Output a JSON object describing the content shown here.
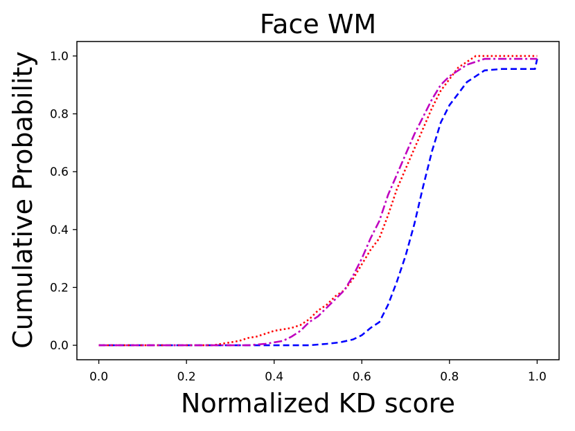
{
  "chart_data": {
    "type": "line",
    "title": "Face WM",
    "xlabel": "Normalized KD score",
    "ylabel": "Cumulative Probability",
    "xlim": [
      -0.05,
      1.05
    ],
    "ylim": [
      -0.05,
      1.05
    ],
    "x_ticks": [
      "0.0",
      "0.2",
      "0.4",
      "0.6",
      "0.8",
      "1.0"
    ],
    "y_ticks": [
      "0.0",
      "0.2",
      "0.4",
      "0.6",
      "0.8",
      "1.0"
    ],
    "grid": false,
    "legend": null,
    "series": [
      {
        "color": "#0000ff",
        "style": "dashed",
        "points": [
          [
            0.0,
            0.0
          ],
          [
            0.1,
            0.0
          ],
          [
            0.2,
            0.0
          ],
          [
            0.3,
            0.0
          ],
          [
            0.4,
            0.0
          ],
          [
            0.48,
            0.0
          ],
          [
            0.52,
            0.005
          ],
          [
            0.55,
            0.01
          ],
          [
            0.58,
            0.02
          ],
          [
            0.6,
            0.035
          ],
          [
            0.62,
            0.06
          ],
          [
            0.64,
            0.08
          ],
          [
            0.66,
            0.14
          ],
          [
            0.68,
            0.22
          ],
          [
            0.7,
            0.31
          ],
          [
            0.72,
            0.42
          ],
          [
            0.74,
            0.55
          ],
          [
            0.76,
            0.67
          ],
          [
            0.78,
            0.77
          ],
          [
            0.8,
            0.83
          ],
          [
            0.82,
            0.87
          ],
          [
            0.84,
            0.91
          ],
          [
            0.86,
            0.93
          ],
          [
            0.88,
            0.95
          ],
          [
            0.92,
            0.955
          ],
          [
            0.97,
            0.955
          ],
          [
            0.995,
            0.955
          ],
          [
            1.0,
            0.99
          ]
        ]
      },
      {
        "color": "#ff0000",
        "style": "dotted",
        "points": [
          [
            0.0,
            0.0
          ],
          [
            0.1,
            0.0
          ],
          [
            0.2,
            0.0
          ],
          [
            0.26,
            0.0
          ],
          [
            0.28,
            0.005
          ],
          [
            0.3,
            0.01
          ],
          [
            0.32,
            0.015
          ],
          [
            0.34,
            0.025
          ],
          [
            0.36,
            0.03
          ],
          [
            0.38,
            0.04
          ],
          [
            0.4,
            0.05
          ],
          [
            0.42,
            0.055
          ],
          [
            0.44,
            0.06
          ],
          [
            0.46,
            0.07
          ],
          [
            0.48,
            0.09
          ],
          [
            0.5,
            0.12
          ],
          [
            0.52,
            0.14
          ],
          [
            0.54,
            0.17
          ],
          [
            0.56,
            0.19
          ],
          [
            0.58,
            0.23
          ],
          [
            0.6,
            0.28
          ],
          [
            0.62,
            0.33
          ],
          [
            0.64,
            0.37
          ],
          [
            0.66,
            0.45
          ],
          [
            0.68,
            0.54
          ],
          [
            0.7,
            0.61
          ],
          [
            0.72,
            0.68
          ],
          [
            0.74,
            0.75
          ],
          [
            0.76,
            0.82
          ],
          [
            0.78,
            0.88
          ],
          [
            0.8,
            0.92
          ],
          [
            0.82,
            0.96
          ],
          [
            0.84,
            0.98
          ],
          [
            0.86,
            1.0
          ],
          [
            0.9,
            1.0
          ],
          [
            1.0,
            1.0
          ]
        ]
      },
      {
        "color": "#bf00bf",
        "style": "dashdot",
        "points": [
          [
            0.0,
            0.0
          ],
          [
            0.1,
            0.0
          ],
          [
            0.2,
            0.0
          ],
          [
            0.3,
            0.0
          ],
          [
            0.34,
            0.0
          ],
          [
            0.38,
            0.005
          ],
          [
            0.42,
            0.015
          ],
          [
            0.44,
            0.03
          ],
          [
            0.46,
            0.05
          ],
          [
            0.48,
            0.08
          ],
          [
            0.5,
            0.1
          ],
          [
            0.52,
            0.13
          ],
          [
            0.54,
            0.16
          ],
          [
            0.56,
            0.19
          ],
          [
            0.58,
            0.24
          ],
          [
            0.6,
            0.3
          ],
          [
            0.62,
            0.37
          ],
          [
            0.64,
            0.43
          ],
          [
            0.66,
            0.52
          ],
          [
            0.68,
            0.59
          ],
          [
            0.7,
            0.66
          ],
          [
            0.72,
            0.73
          ],
          [
            0.74,
            0.79
          ],
          [
            0.76,
            0.85
          ],
          [
            0.78,
            0.9
          ],
          [
            0.8,
            0.93
          ],
          [
            0.82,
            0.95
          ],
          [
            0.84,
            0.97
          ],
          [
            0.86,
            0.98
          ],
          [
            0.88,
            0.99
          ],
          [
            0.92,
            0.99
          ],
          [
            1.0,
            0.99
          ]
        ]
      }
    ]
  }
}
